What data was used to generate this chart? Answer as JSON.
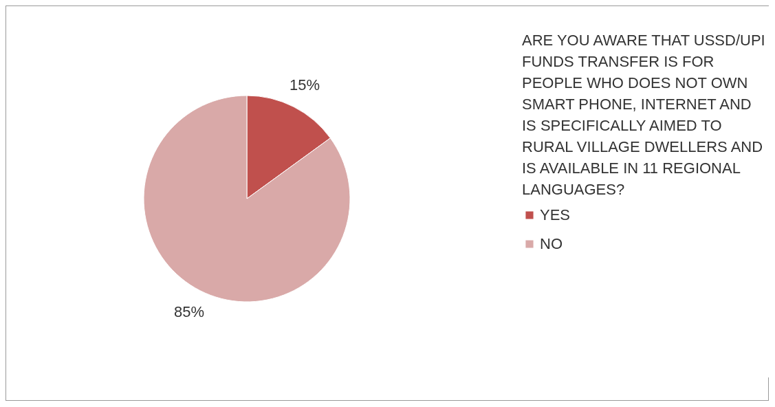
{
  "chart_data": {
    "type": "pie",
    "legend_title": "ARE YOU AWARE THAT USSD/UPI FUNDS TRANSFER IS FOR PEOPLE WHO DOES NOT OWN SMART PHONE, INTERNET AND IS SPECIFICALLY AIMED TO RURAL VILLAGE DWELLERS AND IS AVAILABLE IN 11 REGIONAL LANGUAGES?",
    "categories": [
      "YES",
      "NO"
    ],
    "values": [
      15,
      85
    ],
    "colors": [
      "#c0504d",
      "#d9a9a8"
    ],
    "value_labels": [
      "15%",
      "85%"
    ],
    "legend": "right"
  }
}
